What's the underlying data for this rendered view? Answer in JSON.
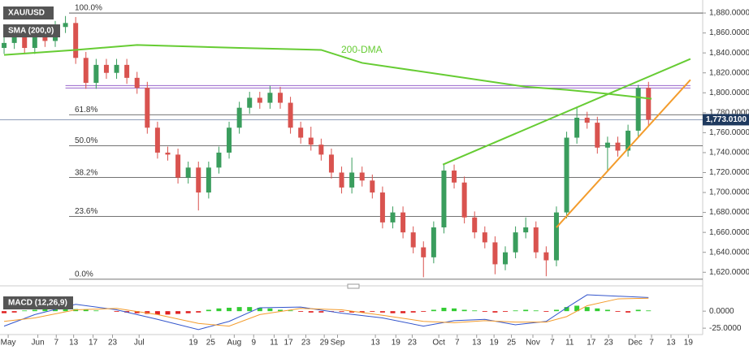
{
  "chart_data": [
    {
      "type": "candlestick",
      "title": "XAU/USD",
      "open": [
        1845,
        1850,
        1858,
        1845,
        1862,
        1852,
        1866,
        1870,
        1835,
        1810,
        1828,
        1820,
        1828,
        1815,
        1805,
        1765,
        1740,
        1738,
        1715,
        1725,
        1700,
        1725,
        1740,
        1765,
        1785,
        1795,
        1790,
        1800,
        1790,
        1765,
        1755,
        1748,
        1738,
        1720,
        1705,
        1720,
        1712,
        1700,
        1670,
        1680,
        1660,
        1645,
        1635,
        1665,
        1722,
        1710,
        1675,
        1660,
        1650,
        1628,
        1640,
        1660,
        1665,
        1640,
        1632,
        1680,
        1755,
        1775,
        1770,
        1745,
        1750,
        1742,
        1762,
        1805
      ],
      "high": [
        1856,
        1864,
        1864,
        1868,
        1868,
        1872,
        1877,
        1876,
        1841,
        1834,
        1834,
        1834,
        1834,
        1821,
        1811,
        1771,
        1746,
        1744,
        1731,
        1731,
        1731,
        1746,
        1771,
        1791,
        1801,
        1801,
        1807,
        1806,
        1796,
        1771,
        1766,
        1754,
        1744,
        1726,
        1735,
        1726,
        1718,
        1706,
        1686,
        1686,
        1666,
        1651,
        1671,
        1729,
        1728,
        1716,
        1681,
        1666,
        1656,
        1646,
        1666,
        1675,
        1671,
        1646,
        1686,
        1761,
        1786,
        1781,
        1776,
        1756,
        1756,
        1768,
        1808,
        1811
      ],
      "low": [
        1839,
        1844,
        1839,
        1839,
        1846,
        1846,
        1860,
        1829,
        1804,
        1804,
        1814,
        1814,
        1809,
        1799,
        1759,
        1734,
        1732,
        1709,
        1709,
        1682,
        1694,
        1719,
        1734,
        1759,
        1779,
        1784,
        1784,
        1784,
        1759,
        1749,
        1742,
        1732,
        1714,
        1699,
        1699,
        1706,
        1694,
        1664,
        1664,
        1654,
        1639,
        1615,
        1629,
        1659,
        1704,
        1669,
        1654,
        1644,
        1618,
        1622,
        1634,
        1654,
        1634,
        1616,
        1626,
        1674,
        1749,
        1764,
        1739,
        1722,
        1736,
        1736,
        1756,
        1767
      ],
      "close": [
        1850,
        1858,
        1845,
        1862,
        1852,
        1866,
        1870,
        1835,
        1810,
        1828,
        1820,
        1828,
        1815,
        1805,
        1765,
        1740,
        1738,
        1715,
        1725,
        1700,
        1725,
        1740,
        1765,
        1785,
        1795,
        1790,
        1800,
        1790,
        1765,
        1755,
        1748,
        1738,
        1720,
        1705,
        1720,
        1712,
        1700,
        1670,
        1680,
        1660,
        1645,
        1635,
        1665,
        1722,
        1710,
        1675,
        1660,
        1650,
        1628,
        1640,
        1660,
        1665,
        1640,
        1632,
        1680,
        1755,
        1775,
        1770,
        1745,
        1750,
        1742,
        1762,
        1805,
        1773
      ],
      "up_color": "#3a9d5d",
      "down_color": "#d9534f",
      "xlim": [
        -0.4,
        68.3
      ],
      "xticks": [
        {
          "value": 0.4,
          "label": "May"
        },
        {
          "value": 3.3,
          "label": "Jun"
        },
        {
          "value": 5.1,
          "label": "7"
        },
        {
          "value": 6.8,
          "label": "13"
        },
        {
          "value": 8.7,
          "label": "17"
        },
        {
          "value": 10.6,
          "label": "23"
        },
        {
          "value": 13.2,
          "label": "Jul"
        },
        {
          "value": 18.5,
          "label": "19"
        },
        {
          "value": 20.2,
          "label": "25"
        },
        {
          "value": 22.5,
          "label": "Aug"
        },
        {
          "value": 24.4,
          "label": "9"
        },
        {
          "value": 26.4,
          "label": "11"
        },
        {
          "value": 27.8,
          "label": "17"
        },
        {
          "value": 29.5,
          "label": "23"
        },
        {
          "value": 31.3,
          "label": "29"
        },
        {
          "value": 32.6,
          "label": "Sep"
        },
        {
          "value": 36.3,
          "label": "13"
        },
        {
          "value": 38.3,
          "label": "19"
        },
        {
          "value": 39.9,
          "label": "23"
        },
        {
          "value": 42.5,
          "label": "Oct"
        },
        {
          "value": 44.3,
          "label": "7"
        },
        {
          "value": 46.2,
          "label": "13"
        },
        {
          "value": 47.9,
          "label": "19"
        },
        {
          "value": 49.6,
          "label": "25"
        },
        {
          "value": 51.7,
          "label": "Nov"
        },
        {
          "value": 53.6,
          "label": "7"
        },
        {
          "value": 55.3,
          "label": "11"
        },
        {
          "value": 57.4,
          "label": "17"
        },
        {
          "value": 59.1,
          "label": "23"
        },
        {
          "value": 61.7,
          "label": "Dec"
        },
        {
          "value": 63.3,
          "label": "7"
        },
        {
          "value": 65.2,
          "label": "13"
        },
        {
          "value": 66.9,
          "label": "19"
        }
      ],
      "ylim": [
        1608,
        1889
      ],
      "yticks": [
        {
          "value": 1620,
          "label": "1,620.0000"
        },
        {
          "value": 1640,
          "label": "1,640.0000"
        },
        {
          "value": 1660,
          "label": "1,660.0000"
        },
        {
          "value": 1680,
          "label": "1,680.0000"
        },
        {
          "value": 1700,
          "label": "1,700.0000"
        },
        {
          "value": 1720,
          "label": "1,720.0000"
        },
        {
          "value": 1740,
          "label": "1,740.0000"
        },
        {
          "value": 1760,
          "label": "1,760.0000"
        },
        {
          "value": 1780,
          "label": "1,780.0000"
        },
        {
          "value": 1800,
          "label": "1,800.0000"
        },
        {
          "value": 1820,
          "label": "1,820.0000"
        },
        {
          "value": 1840,
          "label": "1,840.0000"
        },
        {
          "value": 1860,
          "label": "1,860.0000"
        },
        {
          "value": 1880,
          "label": "1,880.0000"
        }
      ],
      "last_price": {
        "value": 1773.01,
        "label": "1,773.0100"
      },
      "sma": {
        "name": "SMA (200,0)",
        "annotation": "200-DMA",
        "color": "#66cc33",
        "x": [
          0,
          7,
          13,
          23,
          31,
          35,
          43,
          51,
          55,
          59,
          63.3
        ],
        "values": [
          1838,
          1843,
          1848,
          1845,
          1843,
          1830,
          1818,
          1806,
          1803,
          1799,
          1794
        ]
      },
      "fib_levels": [
        {
          "value": 1880,
          "label": "100.0%"
        },
        {
          "value": 1778,
          "label": "61.8%"
        },
        {
          "value": 1747,
          "label": "50.0%"
        },
        {
          "value": 1715,
          "label": "38.2%"
        },
        {
          "value": 1676,
          "label": "23.6%"
        },
        {
          "value": 1613,
          "label": "0.0%"
        }
      ],
      "hline": {
        "value": 1806,
        "color": "#9966cc",
        "x": [
          6,
          67.1
        ]
      },
      "trendlines": [
        {
          "color": "#66cc33",
          "x": [
            42.9,
            67.1
          ],
          "values": [
            1728,
            1834
          ]
        },
        {
          "color": "#f39c2c",
          "x": [
            54,
            67.1
          ],
          "values": [
            1665,
            1813
          ]
        }
      ]
    },
    {
      "type": "macd",
      "title": "MACD (12,26,9)",
      "histogram": [
        -3,
        -2,
        1,
        2,
        3,
        3,
        4,
        3,
        2,
        1,
        0,
        -1,
        -2,
        -3,
        -4,
        -5,
        -5,
        -4,
        -3,
        -2,
        2,
        4,
        5,
        6,
        6,
        5,
        4,
        2,
        1,
        -1,
        -2,
        -2,
        -1,
        -1,
        -2,
        -2,
        -1,
        -2,
        -3,
        -3,
        -2,
        -1,
        2,
        5,
        4,
        2,
        1,
        -1,
        -2,
        -1,
        1,
        2,
        1,
        -1,
        2,
        6,
        8,
        6,
        4,
        2,
        -1,
        -2,
        2,
        1
      ],
      "x": [
        0,
        3,
        7,
        11,
        15,
        19,
        22,
        25,
        29,
        33,
        37,
        41,
        44,
        47,
        50,
        53,
        55,
        57,
        60,
        63
      ],
      "series": [
        {
          "name": "MACD",
          "color": "#3355cc",
          "values": [
            -22,
            -5,
            10,
            2,
            -12,
            -27,
            -15,
            5,
            6,
            -3,
            -10,
            -22,
            -14,
            -12,
            -20,
            -15,
            5,
            24,
            22,
            20
          ]
        },
        {
          "name": "Signal",
          "color": "#f39c2c",
          "values": [
            -15,
            -10,
            2,
            4,
            -5,
            -18,
            -22,
            -5,
            4,
            2,
            -6,
            -15,
            -17,
            -14,
            -16,
            -16,
            -8,
            8,
            18,
            19
          ]
        }
      ],
      "pos_color": "#33cc33",
      "neg_color": "#e02020",
      "ylim": [
        -32,
        30
      ],
      "yticks": [
        {
          "value": 0,
          "label": "0.0000"
        },
        {
          "value": -25,
          "label": "-25.0000"
        }
      ]
    }
  ]
}
